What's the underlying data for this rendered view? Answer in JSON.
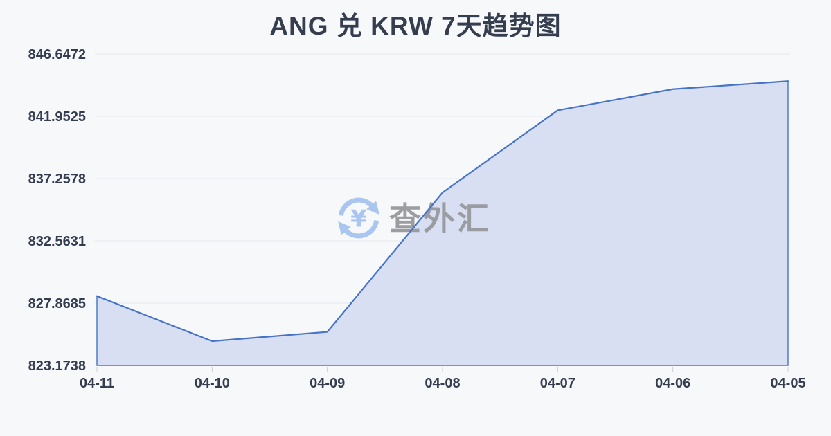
{
  "title": "ANG 兑 KRW 7天趋势图",
  "watermark": {
    "text": "查外汇",
    "icon": "currency-exchange-icon",
    "icon_symbol": "¥"
  },
  "colors": {
    "background": "#f7f8fa",
    "title": "#353e4f",
    "axis_label": "#333d4f",
    "line": "#4673c8",
    "area_fill": "#d8dff2",
    "grid": "#e7e9ed",
    "tick": "#c9ced6",
    "watermark_icon": "#a9c6f1",
    "watermark_text": "#97999d"
  },
  "chart_data": {
    "type": "area",
    "title": "ANG 兑 KRW 7天趋势图",
    "categories": [
      "04-11",
      "04-10",
      "04-09",
      "04-08",
      "04-07",
      "04-06",
      "04-05"
    ],
    "values": [
      828.4,
      825.0,
      825.7,
      836.2,
      842.4,
      844.0,
      844.6
    ],
    "y_ticks": [
      823.1738,
      827.8685,
      832.5631,
      837.2578,
      841.9525,
      846.6472
    ],
    "y_tick_labels": [
      "823.1738",
      "827.8685",
      "832.5631",
      "837.2578",
      "841.9525",
      "846.6472"
    ],
    "ylim": [
      823.1738,
      846.6472
    ],
    "xlabel": "",
    "ylabel": "",
    "grid": true,
    "legend_position": "none"
  }
}
